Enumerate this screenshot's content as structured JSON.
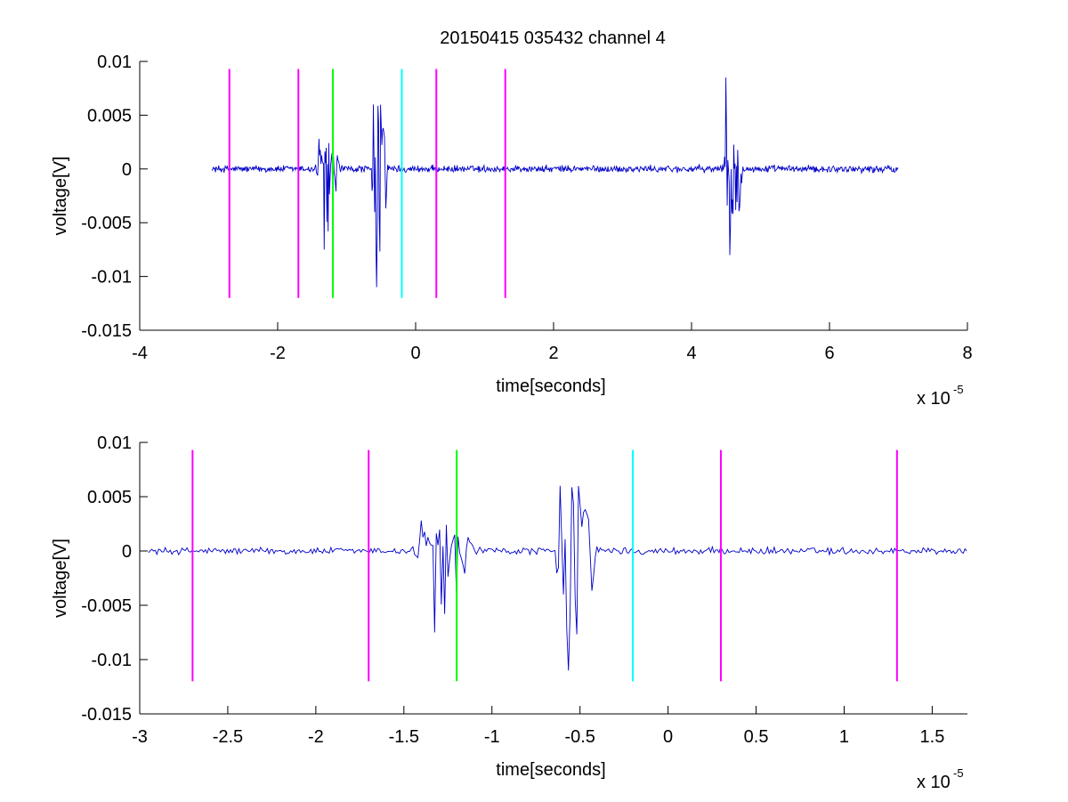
{
  "figure": {
    "title": "20150415 035432 channel 4",
    "colors": {
      "signal": "#0000c8",
      "magenta": "#ff00ff",
      "green": "#00ff00",
      "cyan": "#00ffff",
      "axis": "#000000"
    }
  },
  "chart_data": [
    {
      "type": "line",
      "title": "20150415 035432 channel 4",
      "xlabel": "time[seconds]",
      "ylabel": "voltage[V]",
      "x_exponent_label": "x 10",
      "x_exponent": "-5",
      "x_scale": 1e-05,
      "xlim": [
        -4,
        8
      ],
      "ylim": [
        -0.015,
        0.01
      ],
      "x_ticks": [
        -4,
        -2,
        0,
        2,
        4,
        6,
        8
      ],
      "x_tick_labels": [
        "-4",
        "-2",
        "0",
        "2",
        "4",
        "6",
        "8"
      ],
      "y_ticks": [
        -0.015,
        -0.01,
        -0.005,
        0,
        0.005,
        0.01
      ],
      "y_tick_labels": [
        "-0.015",
        "-0.01",
        "-0.005",
        "0",
        "0.005",
        "0.01"
      ],
      "grid": false,
      "box": "open-left-bottom",
      "signal": {
        "x_range": [
          -2.95,
          7.0
        ],
        "baseline": 0.0,
        "noise_amplitude": 0.0004,
        "bursts": [
          {
            "start": -1.45,
            "end": -1.1,
            "min": -0.0075,
            "max": 0.0028
          },
          {
            "start": -0.65,
            "end": -0.4,
            "min": -0.011,
            "max": 0.006
          },
          {
            "start": 4.45,
            "end": 4.75,
            "min": -0.008,
            "max": 0.0085
          }
        ]
      },
      "markers": [
        {
          "x": -2.7,
          "color": "magenta",
          "ymin": -0.012,
          "ymax": 0.0093
        },
        {
          "x": -1.7,
          "color": "magenta",
          "ymin": -0.012,
          "ymax": 0.0093
        },
        {
          "x": -1.2,
          "color": "green",
          "ymin": -0.012,
          "ymax": 0.0093
        },
        {
          "x": -0.2,
          "color": "cyan",
          "ymin": -0.012,
          "ymax": 0.0093
        },
        {
          "x": 0.3,
          "color": "magenta",
          "ymin": -0.012,
          "ymax": 0.0093
        },
        {
          "x": 1.3,
          "color": "magenta",
          "ymin": -0.012,
          "ymax": 0.0093
        }
      ]
    },
    {
      "type": "line",
      "title": "",
      "xlabel": "time[seconds]",
      "ylabel": "voltage[V]",
      "x_exponent_label": "x 10",
      "x_exponent": "-5",
      "x_scale": 1e-05,
      "xlim": [
        -3,
        1.7
      ],
      "ylim": [
        -0.015,
        0.01
      ],
      "x_ticks": [
        -3,
        -2.5,
        -2,
        -1.5,
        -1,
        -0.5,
        0,
        0.5,
        1,
        1.5
      ],
      "x_tick_labels": [
        "-3",
        "-2.5",
        "-2",
        "-1.5",
        "-1",
        "-0.5",
        "0",
        "0.5",
        "1",
        "1.5"
      ],
      "y_ticks": [
        -0.015,
        -0.01,
        -0.005,
        0,
        0.005,
        0.01
      ],
      "y_tick_labels": [
        "-0.015",
        "-0.01",
        "-0.005",
        "0",
        "0.005",
        "0.01"
      ],
      "grid": false,
      "box": "open-left-bottom",
      "signal": {
        "x_range": [
          -2.95,
          1.7
        ],
        "baseline": 0.0,
        "noise_amplitude": 0.0004,
        "bursts": [
          {
            "start": -1.45,
            "end": -1.1,
            "min": -0.0075,
            "max": 0.0028
          },
          {
            "start": -0.65,
            "end": -0.4,
            "min": -0.011,
            "max": 0.006
          }
        ]
      },
      "markers": [
        {
          "x": -2.7,
          "color": "magenta",
          "ymin": -0.012,
          "ymax": 0.0093
        },
        {
          "x": -1.7,
          "color": "magenta",
          "ymin": -0.012,
          "ymax": 0.0093
        },
        {
          "x": -1.2,
          "color": "green",
          "ymin": -0.012,
          "ymax": 0.0093
        },
        {
          "x": -0.2,
          "color": "cyan",
          "ymin": -0.012,
          "ymax": 0.0093
        },
        {
          "x": 0.3,
          "color": "magenta",
          "ymin": -0.012,
          "ymax": 0.0093
        },
        {
          "x": 1.3,
          "color": "magenta",
          "ymin": -0.012,
          "ymax": 0.0093
        }
      ]
    }
  ]
}
